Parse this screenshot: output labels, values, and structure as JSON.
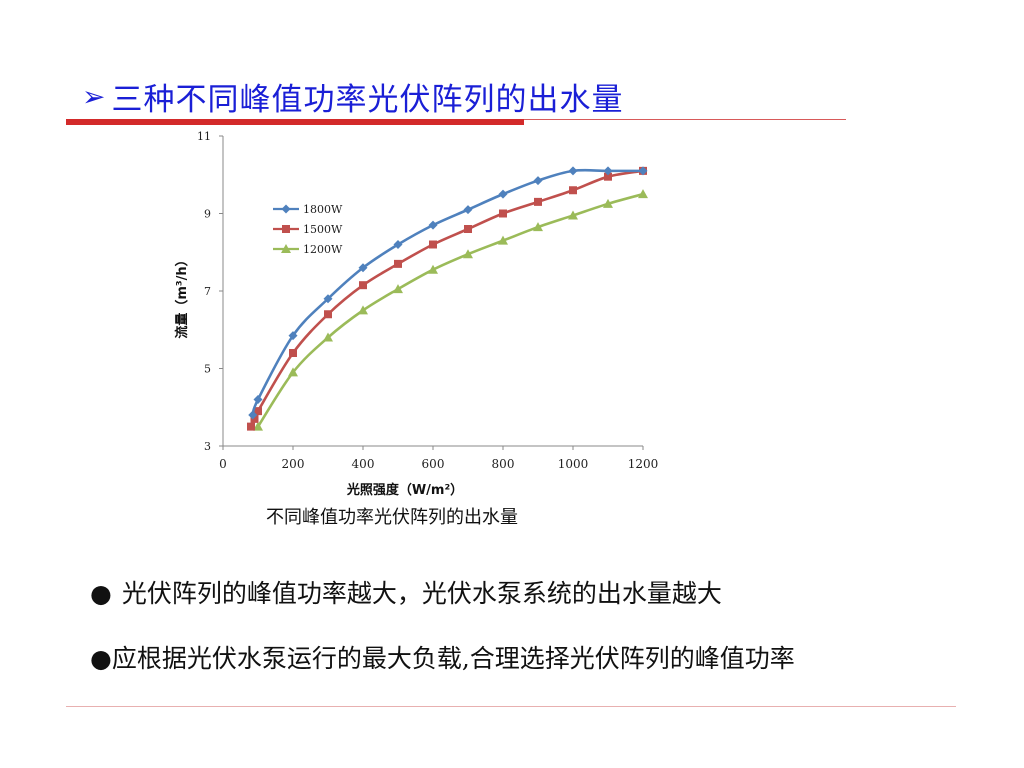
{
  "slide": {
    "title_marker": "➢",
    "title": "三种不同峰值功率光伏阵列的出水量",
    "caption": "不同峰值功率光伏阵列的出水量",
    "bullets": [
      {
        "marker": "●",
        "text": "光伏阵列的峰值功率越大，光伏水泵系统的出水量越大"
      },
      {
        "marker": "●",
        "text": "应根据光伏水泵运行的最大负载,合理选择光伏阵列的峰值功率"
      }
    ]
  },
  "chart_data": {
    "type": "line",
    "title": "",
    "xlabel": "光照强度（W/m²）",
    "ylabel": "流量（m³/h）",
    "xlim": [
      0,
      1200
    ],
    "ylim": [
      3,
      11
    ],
    "xticks": [
      0,
      200,
      400,
      600,
      800,
      1000,
      1200
    ],
    "yticks": [
      3,
      5,
      7,
      9,
      11
    ],
    "grid": false,
    "legend": "upper-left",
    "series": [
      {
        "name": "1800W",
        "color": "#4f81bd",
        "marker": "diamond",
        "x": [
          85,
          100,
          200,
          300,
          400,
          500,
          600,
          700,
          800,
          900,
          1000,
          1100,
          1200
        ],
        "y": [
          3.8,
          4.2,
          5.85,
          6.8,
          7.6,
          8.2,
          8.7,
          9.1,
          9.5,
          9.85,
          10.1,
          10.1,
          10.1
        ]
      },
      {
        "name": "1500W",
        "color": "#c0504d",
        "marker": "square",
        "x": [
          80,
          90,
          100,
          200,
          300,
          400,
          500,
          600,
          700,
          800,
          900,
          1000,
          1100,
          1200
        ],
        "y": [
          3.5,
          3.7,
          3.9,
          5.4,
          6.4,
          7.15,
          7.7,
          8.2,
          8.6,
          9.0,
          9.3,
          9.6,
          9.95,
          10.1
        ]
      },
      {
        "name": "1200W",
        "color": "#9bbb59",
        "marker": "triangle",
        "x": [
          100,
          200,
          300,
          400,
          500,
          600,
          700,
          800,
          900,
          1000,
          1100,
          1200
        ],
        "y": [
          3.5,
          4.9,
          5.8,
          6.5,
          7.05,
          7.55,
          7.95,
          8.3,
          8.65,
          8.95,
          9.25,
          9.5
        ]
      }
    ]
  }
}
